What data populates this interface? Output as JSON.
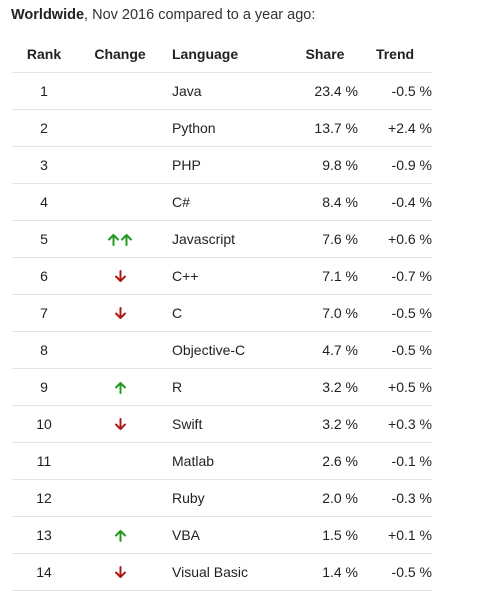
{
  "caption": {
    "bold": "Worldwide",
    "rest": ", Nov 2016 compared to a year ago:"
  },
  "headers": {
    "rank": "Rank",
    "change": "Change",
    "language": "Language",
    "share": "Share",
    "trend": "Trend"
  },
  "colors": {
    "up": "#1f9a1f",
    "down": "#b01818"
  },
  "rows": [
    {
      "rank": "1",
      "change": "none",
      "language": "Java",
      "share": "23.4 %",
      "trend": "-0.5 %"
    },
    {
      "rank": "2",
      "change": "none",
      "language": "Python",
      "share": "13.7 %",
      "trend": "+2.4 %"
    },
    {
      "rank": "3",
      "change": "none",
      "language": "PHP",
      "share": "9.8 %",
      "trend": "-0.9 %"
    },
    {
      "rank": "4",
      "change": "none",
      "language": "C#",
      "share": "8.4 %",
      "trend": "-0.4 %"
    },
    {
      "rank": "5",
      "change": "up2",
      "language": "Javascript",
      "share": "7.6 %",
      "trend": "+0.6 %"
    },
    {
      "rank": "6",
      "change": "down",
      "language": "C++",
      "share": "7.1 %",
      "trend": "-0.7 %"
    },
    {
      "rank": "7",
      "change": "down",
      "language": "C",
      "share": "7.0 %",
      "trend": "-0.5 %"
    },
    {
      "rank": "8",
      "change": "none",
      "language": "Objective-C",
      "share": "4.7 %",
      "trend": "-0.5 %"
    },
    {
      "rank": "9",
      "change": "up",
      "language": "R",
      "share": "3.2 %",
      "trend": "+0.5 %"
    },
    {
      "rank": "10",
      "change": "down",
      "language": "Swift",
      "share": "3.2 %",
      "trend": "+0.3 %"
    },
    {
      "rank": "11",
      "change": "none",
      "language": "Matlab",
      "share": "2.6 %",
      "trend": "-0.1 %"
    },
    {
      "rank": "12",
      "change": "none",
      "language": "Ruby",
      "share": "2.0 %",
      "trend": "-0.3 %"
    },
    {
      "rank": "13",
      "change": "up",
      "language": "VBA",
      "share": "1.5 %",
      "trend": "+0.1 %"
    },
    {
      "rank": "14",
      "change": "down",
      "language": "Visual Basic",
      "share": "1.4 %",
      "trend": "-0.5 %"
    }
  ]
}
